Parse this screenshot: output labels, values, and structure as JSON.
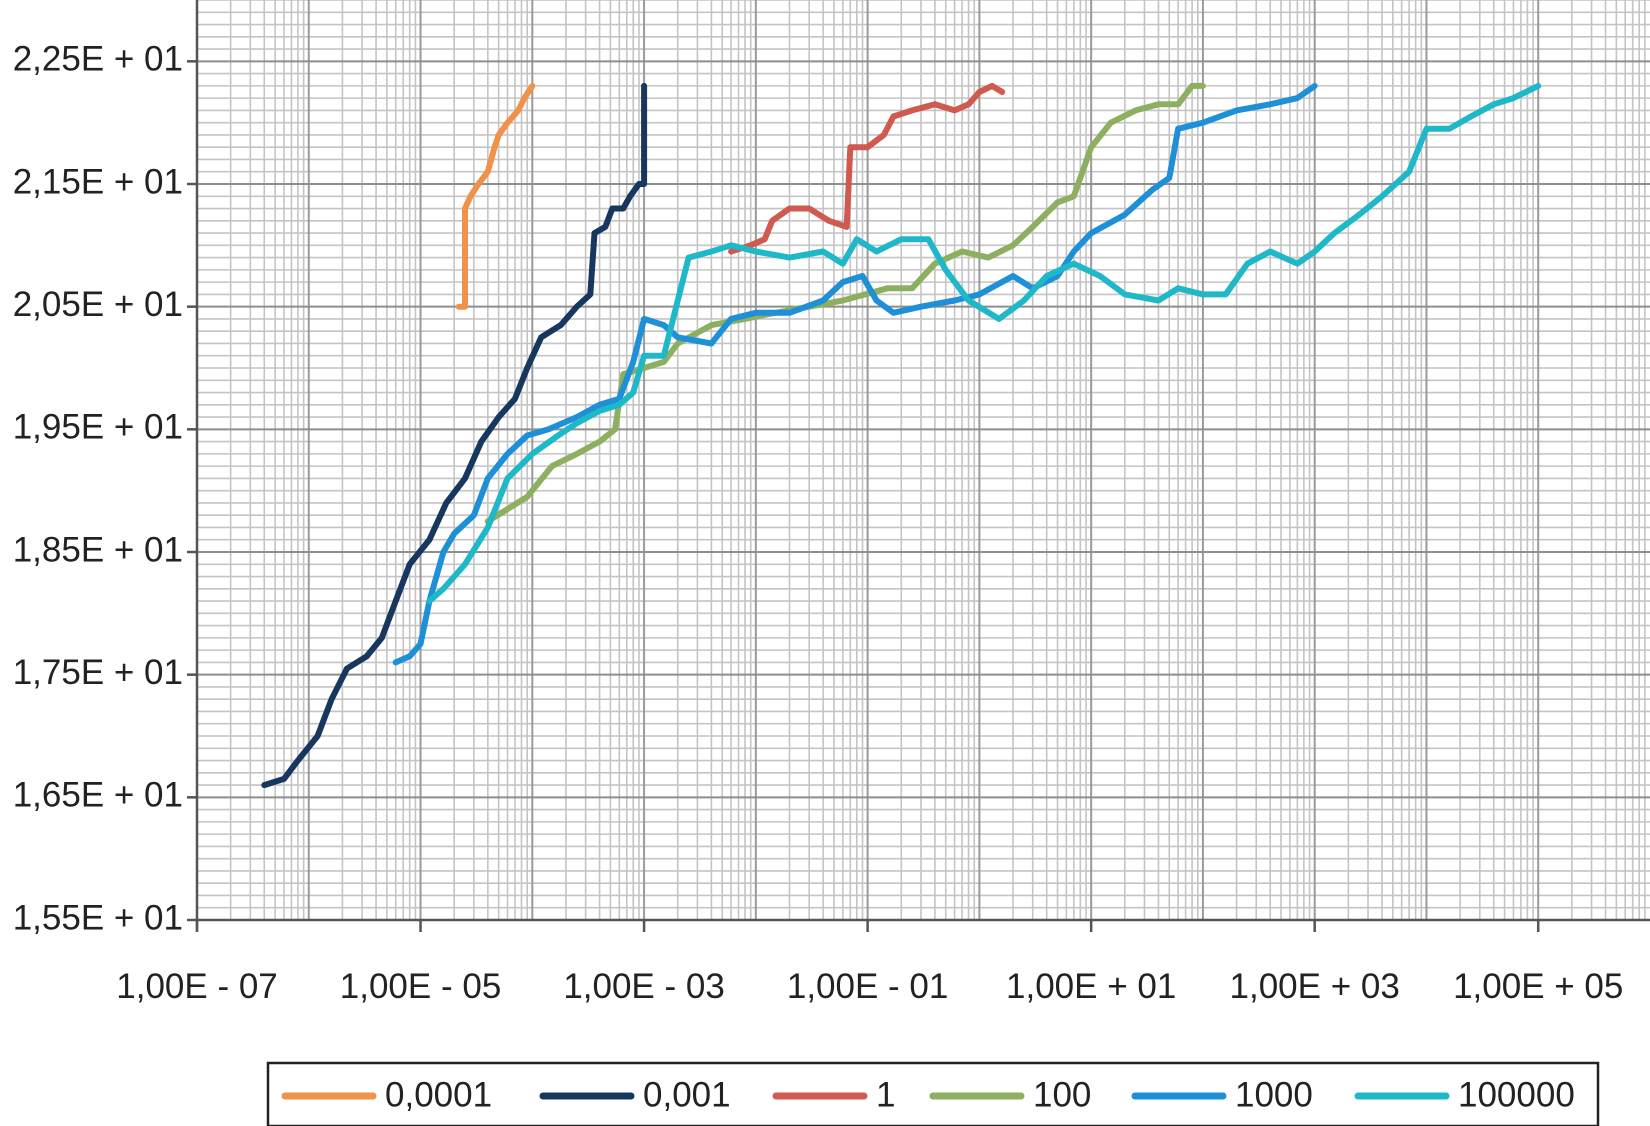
{
  "chart_data": {
    "type": "line",
    "x_scale": "log",
    "xlim": [
      1e-07,
      1000000.0
    ],
    "ylim": [
      15.5,
      23.0
    ],
    "y_ticks": [
      {
        "value": 15.5,
        "label": "1,55E + 01"
      },
      {
        "value": 16.5,
        "label": "1,65E + 01"
      },
      {
        "value": 17.5,
        "label": "1,75E + 01"
      },
      {
        "value": 18.5,
        "label": "1,85E + 01"
      },
      {
        "value": 19.5,
        "label": "1,95E + 01"
      },
      {
        "value": 20.5,
        "label": "2,05E + 01"
      },
      {
        "value": 21.5,
        "label": "2,15E + 01"
      },
      {
        "value": 22.5,
        "label": "2,25E + 01"
      }
    ],
    "x_ticks": [
      {
        "value": 1e-07,
        "label": "1,00E - 07"
      },
      {
        "value": 1e-05,
        "label": "1,00E - 05"
      },
      {
        "value": 0.001,
        "label": "1,00E - 03"
      },
      {
        "value": 0.1,
        "label": "1,00E - 01"
      },
      {
        "value": 10.0,
        "label": "1,00E + 01"
      },
      {
        "value": 1000.0,
        "label": "1,00E + 03"
      },
      {
        "value": 100000.0,
        "label": "1,00E + 05"
      }
    ],
    "grid": true,
    "legend_position": "bottom",
    "series": [
      {
        "name": "0,0001",
        "color": "#F0924A",
        "points": [
          [
            2.2e-05,
            20.5
          ],
          [
            2.5e-05,
            20.5
          ],
          [
            2.5e-05,
            21.3
          ],
          [
            2.8e-05,
            21.4
          ],
          [
            3.3e-05,
            21.5
          ],
          [
            4e-05,
            21.6
          ],
          [
            4.6e-05,
            21.8
          ],
          [
            5e-05,
            21.9
          ],
          [
            6e-05,
            22.0
          ],
          [
            7.5e-05,
            22.1
          ],
          [
            8.5e-05,
            22.2
          ],
          [
            0.0001,
            22.3
          ]
        ]
      },
      {
        "name": "0,001",
        "color": "#17375E",
        "points": [
          [
            4e-07,
            16.6
          ],
          [
            6e-07,
            16.65
          ],
          [
            8e-07,
            16.8
          ],
          [
            1.2e-06,
            17.0
          ],
          [
            1.6e-06,
            17.3
          ],
          [
            2.2e-06,
            17.55
          ],
          [
            3.3e-06,
            17.65
          ],
          [
            4.5e-06,
            17.8
          ],
          [
            6e-06,
            18.1
          ],
          [
            8e-06,
            18.4
          ],
          [
            1.2e-05,
            18.6
          ],
          [
            1.7e-05,
            18.9
          ],
          [
            2.5e-05,
            19.1
          ],
          [
            3.5e-05,
            19.4
          ],
          [
            5e-05,
            19.6
          ],
          [
            7e-05,
            19.75
          ],
          [
            9e-05,
            20.0
          ],
          [
            0.00012,
            20.25
          ],
          [
            0.00018,
            20.35
          ],
          [
            0.00025,
            20.5
          ],
          [
            0.00033,
            20.6
          ],
          [
            0.00036,
            21.1
          ],
          [
            0.00045,
            21.15
          ],
          [
            0.00052,
            21.3
          ],
          [
            0.00065,
            21.3
          ],
          [
            0.00075,
            21.4
          ],
          [
            0.0009,
            21.5
          ],
          [
            0.001,
            21.5
          ],
          [
            0.001,
            22.3
          ]
        ]
      },
      {
        "name": "1",
        "color": "#D05A50",
        "points": [
          [
            0.006,
            20.95
          ],
          [
            0.009,
            21.0
          ],
          [
            0.012,
            21.05
          ],
          [
            0.014,
            21.2
          ],
          [
            0.02,
            21.3
          ],
          [
            0.03,
            21.3
          ],
          [
            0.045,
            21.2
          ],
          [
            0.065,
            21.15
          ],
          [
            0.07,
            21.8
          ],
          [
            0.1,
            21.8
          ],
          [
            0.14,
            21.9
          ],
          [
            0.17,
            22.05
          ],
          [
            0.25,
            22.1
          ],
          [
            0.4,
            22.15
          ],
          [
            0.6,
            22.1
          ],
          [
            0.8,
            22.15
          ],
          [
            1,
            22.25
          ],
          [
            1.3,
            22.3
          ],
          [
            1.6,
            22.25
          ]
        ]
      },
      {
        "name": "100",
        "color": "#8DB060",
        "points": [
          [
            4e-05,
            18.75
          ],
          [
            6e-05,
            18.85
          ],
          [
            9e-05,
            18.95
          ],
          [
            0.00015,
            19.2
          ],
          [
            0.00025,
            19.3
          ],
          [
            0.0004,
            19.4
          ],
          [
            0.00055,
            19.5
          ],
          [
            0.00065,
            19.95
          ],
          [
            0.001,
            20.0
          ],
          [
            0.0015,
            20.05
          ],
          [
            0.002,
            20.2
          ],
          [
            0.004,
            20.35
          ],
          [
            0.008,
            20.4
          ],
          [
            0.015,
            20.45
          ],
          [
            0.03,
            20.5
          ],
          [
            0.06,
            20.55
          ],
          [
            0.15,
            20.65
          ],
          [
            0.25,
            20.65
          ],
          [
            0.4,
            20.85
          ],
          [
            0.7,
            20.95
          ],
          [
            1.2,
            20.9
          ],
          [
            2,
            21.0
          ],
          [
            3,
            21.15
          ],
          [
            5,
            21.35
          ],
          [
            7,
            21.4
          ],
          [
            10,
            21.8
          ],
          [
            15,
            22.0
          ],
          [
            25,
            22.1
          ],
          [
            40,
            22.15
          ],
          [
            60,
            22.15
          ],
          [
            80,
            22.3
          ],
          [
            100,
            22.3
          ]
        ]
      },
      {
        "name": "1000",
        "color": "#1E90D8",
        "points": [
          [
            6e-06,
            17.6
          ],
          [
            8e-06,
            17.65
          ],
          [
            1e-05,
            17.75
          ],
          [
            1.2e-05,
            18.1
          ],
          [
            1.6e-05,
            18.5
          ],
          [
            2e-05,
            18.65
          ],
          [
            3e-05,
            18.8
          ],
          [
            4e-05,
            19.1
          ],
          [
            6e-05,
            19.3
          ],
          [
            9e-05,
            19.45
          ],
          [
            0.00014,
            19.5
          ],
          [
            0.00025,
            19.6
          ],
          [
            0.0004,
            19.7
          ],
          [
            0.0006,
            19.75
          ],
          [
            0.0008,
            20.05
          ],
          [
            0.001,
            20.4
          ],
          [
            0.0015,
            20.35
          ],
          [
            0.002,
            20.25
          ],
          [
            0.004,
            20.2
          ],
          [
            0.006,
            20.4
          ],
          [
            0.01,
            20.45
          ],
          [
            0.02,
            20.45
          ],
          [
            0.04,
            20.55
          ],
          [
            0.06,
            20.7
          ],
          [
            0.09,
            20.75
          ],
          [
            0.12,
            20.55
          ],
          [
            0.17,
            20.45
          ],
          [
            0.3,
            20.5
          ],
          [
            0.6,
            20.55
          ],
          [
            1,
            20.6
          ],
          [
            2,
            20.75
          ],
          [
            3,
            20.65
          ],
          [
            5,
            20.75
          ],
          [
            7,
            20.95
          ],
          [
            10,
            21.1
          ],
          [
            20,
            21.25
          ],
          [
            35,
            21.45
          ],
          [
            50,
            21.55
          ],
          [
            60,
            21.95
          ],
          [
            100,
            22.0
          ],
          [
            200,
            22.1
          ],
          [
            400,
            22.15
          ],
          [
            700,
            22.2
          ],
          [
            1000,
            22.3
          ]
        ]
      },
      {
        "name": "100000",
        "color": "#1FB8C8",
        "points": [
          [
            1.2e-05,
            18.1
          ],
          [
            1.6e-05,
            18.2
          ],
          [
            2.5e-05,
            18.4
          ],
          [
            4e-05,
            18.7
          ],
          [
            6e-05,
            19.1
          ],
          [
            0.0001,
            19.3
          ],
          [
            0.00017,
            19.45
          ],
          [
            0.00025,
            19.55
          ],
          [
            0.0004,
            19.65
          ],
          [
            0.0006,
            19.7
          ],
          [
            0.0008,
            19.8
          ],
          [
            0.001,
            20.1
          ],
          [
            0.0015,
            20.1
          ],
          [
            0.0025,
            20.9
          ],
          [
            0.004,
            20.95
          ],
          [
            0.006,
            21.0
          ],
          [
            0.01,
            20.95
          ],
          [
            0.02,
            20.9
          ],
          [
            0.04,
            20.95
          ],
          [
            0.06,
            20.85
          ],
          [
            0.08,
            21.05
          ],
          [
            0.12,
            20.95
          ],
          [
            0.2,
            21.05
          ],
          [
            0.35,
            21.05
          ],
          [
            0.5,
            20.8
          ],
          [
            0.8,
            20.55
          ],
          [
            1.5,
            20.4
          ],
          [
            2.5,
            20.55
          ],
          [
            4,
            20.75
          ],
          [
            7,
            20.85
          ],
          [
            12,
            20.75
          ],
          [
            20,
            20.6
          ],
          [
            40,
            20.55
          ],
          [
            60,
            20.65
          ],
          [
            100,
            20.6
          ],
          [
            160,
            20.6
          ],
          [
            250,
            20.85
          ],
          [
            400,
            20.95
          ],
          [
            700,
            20.85
          ],
          [
            1000,
            20.95
          ],
          [
            1500,
            21.1
          ],
          [
            2500,
            21.25
          ],
          [
            4000,
            21.4
          ],
          [
            7000,
            21.6
          ],
          [
            10000,
            21.95
          ],
          [
            16000,
            21.95
          ],
          [
            25000,
            22.05
          ],
          [
            40000,
            22.15
          ],
          [
            60000,
            22.2
          ],
          [
            100000,
            22.3
          ]
        ]
      }
    ]
  }
}
